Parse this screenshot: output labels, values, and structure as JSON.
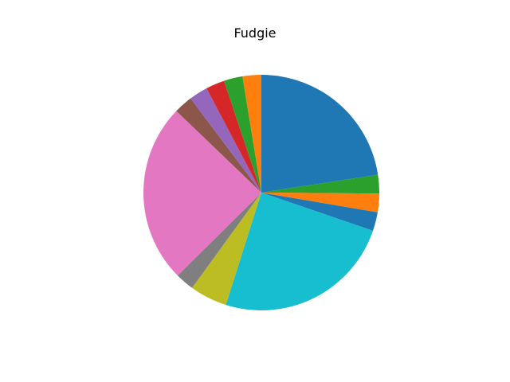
{
  "chart_data": {
    "type": "pie",
    "title": "Fudgie",
    "start_angle_deg": 90,
    "direction": "clockwise",
    "slices": [
      {
        "value": 22.0,
        "color": "#1f77b4"
      },
      {
        "value": 2.5,
        "color": "#2ca02c"
      },
      {
        "value": 2.5,
        "color": "#ff7f0e"
      },
      {
        "value": 2.5,
        "color": "#1f77b4"
      },
      {
        "value": 24.0,
        "color": "#17becf"
      },
      {
        "value": 5.0,
        "color": "#bcbd22"
      },
      {
        "value": 2.5,
        "color": "#7f7f7f"
      },
      {
        "value": 24.0,
        "color": "#e377c2"
      },
      {
        "value": 2.5,
        "color": "#8c564b"
      },
      {
        "value": 2.5,
        "color": "#9467bd"
      },
      {
        "value": 2.5,
        "color": "#d62728"
      },
      {
        "value": 2.5,
        "color": "#2ca02c"
      },
      {
        "value": 2.5,
        "color": "#ff7f0e"
      }
    ]
  }
}
